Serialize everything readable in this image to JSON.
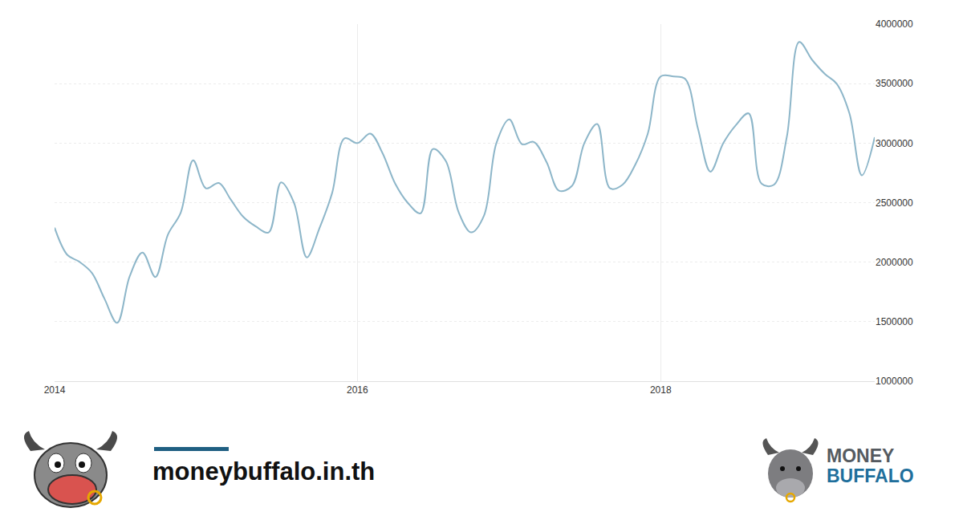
{
  "chart_data": {
    "type": "line",
    "x": [
      "2014-01",
      "2014-02",
      "2014-03",
      "2014-04",
      "2014-05",
      "2014-06",
      "2014-07",
      "2014-08",
      "2014-09",
      "2014-10",
      "2014-11",
      "2014-12",
      "2015-01",
      "2015-02",
      "2015-03",
      "2015-04",
      "2015-05",
      "2015-06",
      "2015-07",
      "2015-08",
      "2015-09",
      "2015-10",
      "2015-11",
      "2015-12",
      "2016-01",
      "2016-02",
      "2016-03",
      "2016-04",
      "2016-05",
      "2016-06",
      "2016-07",
      "2016-08",
      "2016-09",
      "2016-10",
      "2016-11",
      "2016-12",
      "2017-01",
      "2017-02",
      "2017-03",
      "2017-04",
      "2017-05",
      "2017-06",
      "2017-07",
      "2017-08",
      "2017-09",
      "2017-10",
      "2017-11",
      "2017-12",
      "2018-01",
      "2018-02",
      "2018-03",
      "2018-04",
      "2018-05",
      "2018-06",
      "2018-07",
      "2018-08",
      "2018-09",
      "2018-10",
      "2018-11",
      "2018-12",
      "2019-01",
      "2019-02",
      "2019-03",
      "2019-04",
      "2019-05",
      "2019-06"
    ],
    "values": [
      2290000,
      2060000,
      2005000,
      1910000,
      1695000,
      1490000,
      1880000,
      2080000,
      1875000,
      2230000,
      2415000,
      2855000,
      2620000,
      2665000,
      2530000,
      2380000,
      2300000,
      2250000,
      2670000,
      2500000,
      2040000,
      2280000,
      2580000,
      3040000,
      3000000,
      3080000,
      2920000,
      2660000,
      2500000,
      2410000,
      2950000,
      2850000,
      2420000,
      2250000,
      2390000,
      3000000,
      3200000,
      2990000,
      3010000,
      2840000,
      2600000,
      2640000,
      3000000,
      3160000,
      2620000,
      2650000,
      2820000,
      3080000,
      3560000,
      3560000,
      3540000,
      3120000,
      2760000,
      3000000,
      3150000,
      3250000,
      2660000,
      2650000,
      3050000,
      3850000,
      3700000,
      3580000,
      3500000,
      3250000,
      2730000,
      3050000
    ],
    "color": "#8db6c9",
    "xlim": [
      "2014-01",
      "2019-06"
    ],
    "xticks": [
      {
        "value": "2014-01",
        "label": "2014"
      },
      {
        "value": "2016-01",
        "label": "2016"
      },
      {
        "value": "2018-01",
        "label": "2018"
      }
    ],
    "ylim": [
      1000000,
      4000000
    ],
    "yticks": [
      1000000,
      1500000,
      2000000,
      2500000,
      3000000,
      3500000,
      4000000
    ],
    "grid": true
  },
  "footer": {
    "site": "moneybuffalo.in.th",
    "logo": [
      "MONEY",
      "BUFFALO"
    ]
  }
}
